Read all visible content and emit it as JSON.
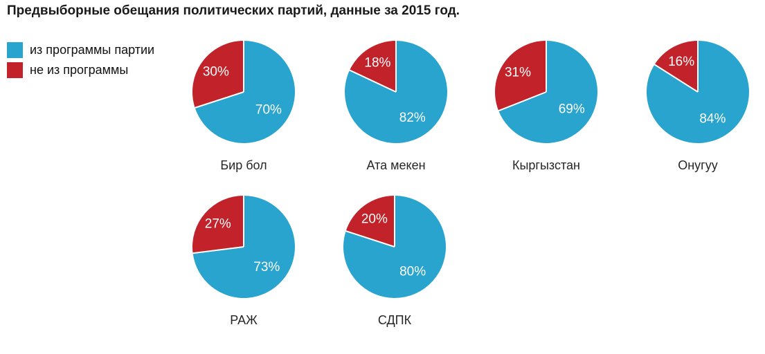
{
  "title": "Предвыборные обещания политических партий, данные за 2015 год.",
  "legend": {
    "items": [
      {
        "label": "из программы партии",
        "color": "#29A4CE"
      },
      {
        "label": "не из программы",
        "color": "#C2222A"
      }
    ]
  },
  "chart_data": {
    "type": "pie",
    "title": "Предвыборные обещания политических партий, данные за 2015 год.",
    "legend_position": "top-left",
    "series_labels": [
      "из программы партии",
      "не из программы"
    ],
    "colors": [
      "#29A4CE",
      "#C2222A"
    ],
    "value_label_color": "#ffffff",
    "separator_color": "#ffffff",
    "unit": "%",
    "pies": [
      {
        "name": "Бир бол",
        "values": [
          70,
          30
        ]
      },
      {
        "name": "Ата мекен",
        "values": [
          82,
          18
        ]
      },
      {
        "name": "Кыргызстан",
        "values": [
          69,
          31
        ]
      },
      {
        "name": "Онугуу",
        "values": [
          84,
          16
        ]
      },
      {
        "name": "РАЖ",
        "values": [
          73,
          27
        ]
      },
      {
        "name": "СДПК",
        "values": [
          80,
          20
        ]
      }
    ]
  }
}
